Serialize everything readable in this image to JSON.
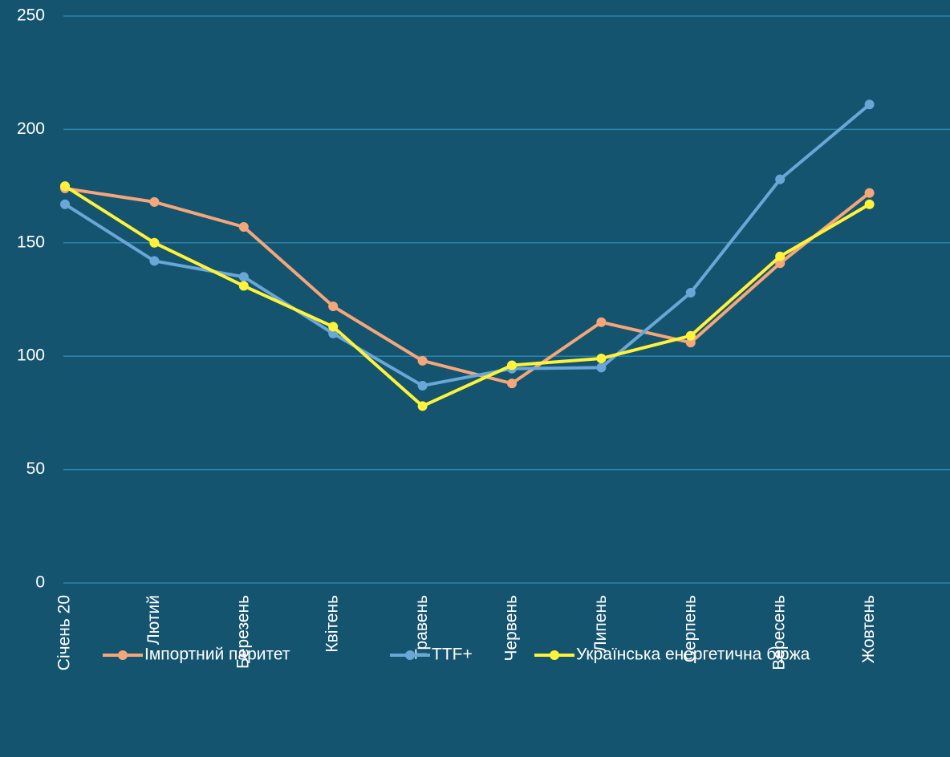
{
  "chart_data": {
    "type": "line",
    "categories": [
      "Січень 20",
      "Лютий",
      "Березень",
      "Квітень",
      "Травень",
      "Червень",
      "Липень",
      "Серпень",
      "Вересень",
      "Жовтень"
    ],
    "series": [
      {
        "name": "Імпортний паритет",
        "color": "#f4a77a",
        "values": [
          174,
          168,
          157,
          122,
          98,
          88,
          115,
          106,
          141,
          172
        ]
      },
      {
        "name": "TTF+",
        "color": "#6aa6d6",
        "values": [
          167,
          142,
          135,
          110,
          87,
          94.5,
          95,
          128,
          178,
          211
        ]
      },
      {
        "name": "Українська енергетична біржа",
        "color": "#fff23a",
        "values": [
          175,
          150,
          131,
          113,
          78,
          96,
          99,
          109,
          144,
          167
        ]
      }
    ],
    "ylim": [
      0,
      250
    ],
    "yticks": [
      0,
      50,
      100,
      150,
      200,
      250
    ],
    "grid": true,
    "legend": "bottom"
  }
}
